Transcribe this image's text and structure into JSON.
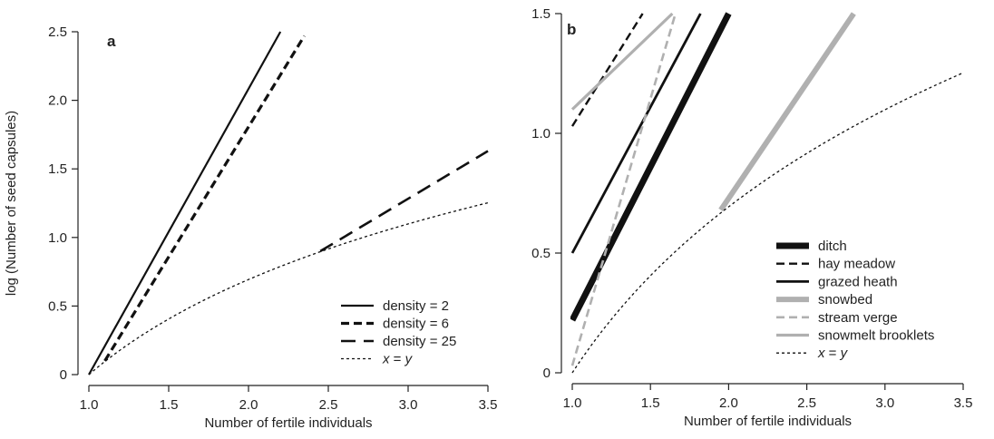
{
  "chart_data": [
    {
      "type": "line",
      "panel_label": "a",
      "xlabel": "Number of fertile individuals",
      "ylabel": "log (Number of seed capsules)",
      "xlim": [
        1.0,
        3.5
      ],
      "ylim": [
        0,
        2.5
      ],
      "x_ticks": [
        1.0,
        1.5,
        2.0,
        2.5,
        3.0,
        3.5
      ],
      "x_tick_labels": [
        "1.0",
        "1.5",
        "2.0",
        "2.5",
        "3.0",
        "3.5"
      ],
      "y_ticks": [
        0,
        0.5,
        1.0,
        1.5,
        2.0,
        2.5
      ],
      "y_tick_labels": [
        "0",
        "0.5",
        "1.0",
        "1.5",
        "2.0",
        "2.5"
      ],
      "grid": false,
      "legend_position": "bottom-right",
      "series": [
        {
          "name": "density = 2",
          "style": "solid",
          "color": "#111111",
          "width": 2.2,
          "x": [
            1.0,
            2.2
          ],
          "y": [
            0.0,
            2.5
          ]
        },
        {
          "name": "density = 6",
          "style": "dashed",
          "color": "#111111",
          "width": 3.2,
          "x": [
            1.1,
            2.35
          ],
          "y": [
            0.1,
            2.47
          ]
        },
        {
          "name": "density = 25",
          "style": "longdash",
          "color": "#111111",
          "width": 2.6,
          "x": [
            2.45,
            3.5
          ],
          "y": [
            0.9,
            1.63
          ]
        },
        {
          "name": "x = y",
          "style": "dotted",
          "color": "#111111",
          "width": 1.3,
          "function": "log(x)",
          "x_range": [
            1.0,
            3.5
          ]
        }
      ]
    },
    {
      "type": "line",
      "panel_label": "b",
      "xlabel": "Number of fertile individuals",
      "ylabel": "",
      "xlim": [
        1.0,
        3.5
      ],
      "ylim": [
        0,
        1.5
      ],
      "x_ticks": [
        1.0,
        1.5,
        2.0,
        2.5,
        3.0,
        3.5
      ],
      "x_tick_labels": [
        "1.0",
        "1.5",
        "2.0",
        "2.5",
        "3.0",
        "3.5"
      ],
      "y_ticks": [
        0,
        0.5,
        1.0,
        1.5
      ],
      "y_tick_labels": [
        "0",
        "0.5",
        "1.0",
        "1.5"
      ],
      "grid": false,
      "legend_position": "bottom-right",
      "series": [
        {
          "name": "ditch",
          "style": "solid",
          "color": "#111111",
          "width": 7,
          "x": [
            1.0,
            2.0
          ],
          "y": [
            0.22,
            1.5
          ]
        },
        {
          "name": "hay meadow",
          "style": "dashed",
          "color": "#111111",
          "width": 2.4,
          "x": [
            1.0,
            1.45
          ],
          "y": [
            1.03,
            1.5
          ]
        },
        {
          "name": "grazed heath",
          "style": "solid",
          "color": "#111111",
          "width": 2.8,
          "x": [
            1.0,
            1.82
          ],
          "y": [
            0.5,
            1.5
          ]
        },
        {
          "name": "snowbed",
          "style": "solid",
          "color": "#b0b0b0",
          "width": 6,
          "x": [
            1.95,
            2.8
          ],
          "y": [
            0.68,
            1.5
          ]
        },
        {
          "name": "stream verge",
          "style": "dashed",
          "color": "#b0b0b0",
          "width": 2.6,
          "x": [
            1.0,
            1.66
          ],
          "y": [
            0.03,
            1.5
          ]
        },
        {
          "name": "snowmelt brooklets",
          "style": "solid",
          "color": "#b0b0b0",
          "width": 3.2,
          "x": [
            1.0,
            1.64
          ],
          "y": [
            1.1,
            1.5
          ]
        },
        {
          "name": "x = y",
          "style": "dotted",
          "color": "#111111",
          "width": 1.3,
          "function": "log(x)",
          "x_range": [
            1.0,
            3.5
          ]
        }
      ]
    }
  ]
}
